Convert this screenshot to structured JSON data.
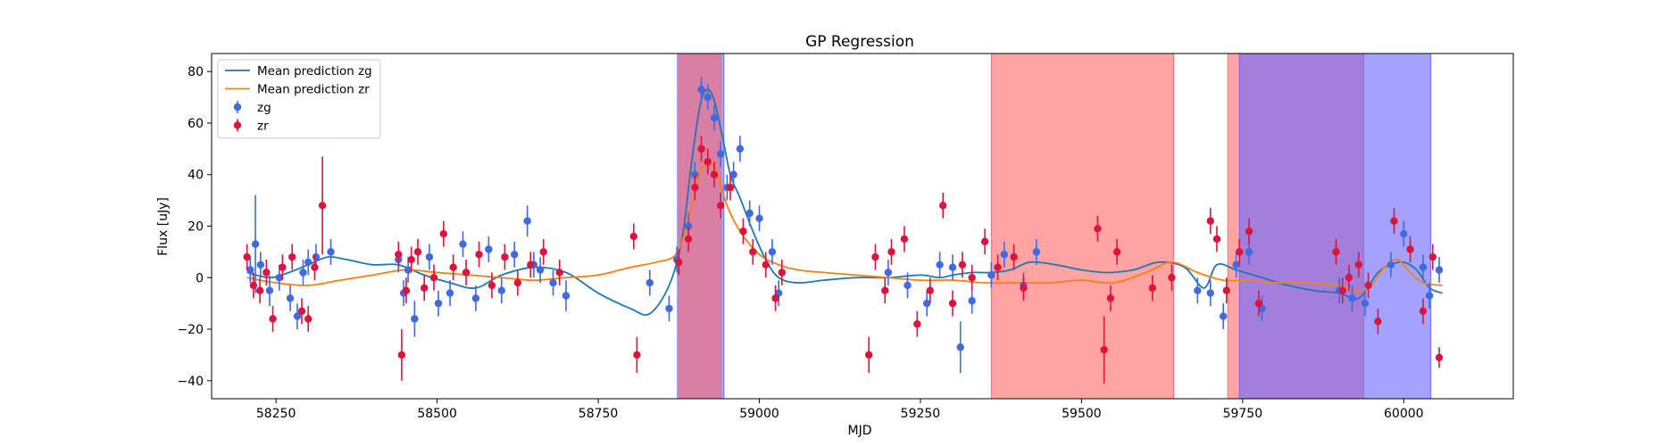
{
  "chart_data": {
    "type": "scatter",
    "title": "GP Regression",
    "xlabel": "MJD",
    "ylabel": "Flux [uJy]",
    "xlim": [
      58150,
      60170
    ],
    "ylim": [
      -47,
      87
    ],
    "xticks": [
      58250,
      58500,
      58750,
      59000,
      59250,
      59500,
      59750,
      60000
    ],
    "yticks": [
      -40,
      -20,
      0,
      20,
      40,
      60,
      80
    ],
    "grid": false,
    "legend_placement": "upper-left",
    "colors": {
      "mean_zg": "#1f77b4",
      "mean_zr": "#ff7f0e",
      "points_zg": "#4169e1",
      "points_zr": "#dc143c",
      "span_red": "#ff6666",
      "span_blue": "#6666ff"
    },
    "shaded_regions": [
      {
        "band": "zg",
        "x": [
          58873,
          58945
        ],
        "color": "blue"
      },
      {
        "band": "zr",
        "x": [
          58876,
          58940
        ],
        "color": "red"
      },
      {
        "band": "zr",
        "x": [
          59360,
          59643
        ],
        "color": "red"
      },
      {
        "band": "zr",
        "x": [
          59727,
          59938
        ],
        "color": "red"
      },
      {
        "band": "zg",
        "x": [
          59745,
          60042
        ],
        "color": "blue"
      }
    ],
    "series": [
      {
        "name": "Mean prediction zg",
        "kind": "line",
        "x": [
          58205,
          58240,
          58270,
          58300,
          58330,
          58360,
          58400,
          58440,
          58480,
          58520,
          58560,
          58600,
          58650,
          58700,
          58750,
          58800,
          58830,
          58860,
          58880,
          58895,
          58910,
          58925,
          58940,
          58955,
          58970,
          58990,
          59010,
          59030,
          59060,
          59100,
          59150,
          59200,
          59250,
          59280,
          59300,
          59330,
          59360,
          59390,
          59420,
          59460,
          59500,
          59540,
          59580,
          59620,
          59660,
          59690,
          59710,
          59740,
          59780,
          59820,
          59860,
          59900,
          59930,
          59960,
          59980,
          60000,
          60020,
          60040,
          60060
        ],
        "y": [
          2,
          0,
          2,
          5,
          8,
          7,
          5,
          5,
          1,
          -2,
          -4,
          1,
          4,
          2,
          -6,
          -12,
          -14,
          -3,
          15,
          45,
          69,
          72,
          58,
          40,
          31,
          18,
          7,
          0,
          -2,
          -1,
          0,
          0,
          1,
          0,
          1,
          2,
          2,
          3,
          6,
          5,
          3,
          2,
          3,
          6,
          4,
          -4,
          5,
          3,
          0,
          -3,
          -5,
          -6,
          -8,
          2,
          5,
          6,
          3,
          -4,
          -6
        ]
      },
      {
        "name": "Mean prediction zr",
        "kind": "line",
        "x": [
          58205,
          58250,
          58300,
          58350,
          58400,
          58450,
          58500,
          58550,
          58600,
          58650,
          58700,
          58750,
          58800,
          58840,
          58870,
          58890,
          58905,
          58920,
          58935,
          58950,
          58970,
          59000,
          59030,
          59060,
          59100,
          59150,
          59200,
          59250,
          59300,
          59350,
          59400,
          59450,
          59500,
          59550,
          59600,
          59640,
          59680,
          59720,
          59760,
          59800,
          59850,
          59900,
          59940,
          59970,
          59990,
          60010,
          60030,
          60060
        ],
        "y": [
          0,
          -2,
          -3,
          -1,
          1,
          3,
          2,
          1,
          0,
          -1,
          0,
          1,
          4,
          6,
          9,
          22,
          38,
          45,
          40,
          28,
          18,
          9,
          5,
          3,
          2,
          1,
          0,
          -1,
          -1,
          -2,
          -2,
          -2,
          -1,
          -2,
          2,
          6,
          2,
          -1,
          -1,
          -2,
          -2,
          -3,
          -5,
          4,
          7,
          2,
          -2,
          -3
        ]
      },
      {
        "name": "zg",
        "kind": "errorbar",
        "x": [
          58210,
          58218,
          58226,
          58240,
          58255,
          58272,
          58283,
          58292,
          58300,
          58312,
          58335,
          58440,
          58448,
          58455,
          58465,
          58488,
          58502,
          58520,
          58540,
          58560,
          58580,
          58600,
          58620,
          58640,
          58650,
          58660,
          58680,
          58700,
          58830,
          58860,
          58872,
          58890,
          58900,
          58910,
          58920,
          58930,
          58940,
          58950,
          58960,
          58970,
          58985,
          59000,
          59020,
          59030,
          59200,
          59230,
          59260,
          59280,
          59300,
          59312,
          59330,
          59360,
          59380,
          59410,
          59430,
          59680,
          59700,
          59720,
          59740,
          59760,
          59780,
          59900,
          59920,
          59940,
          59980,
          60000,
          60030,
          60040,
          60055
        ],
        "y": [
          3,
          13,
          5,
          -5,
          0,
          -8,
          -15,
          2,
          6,
          8,
          10,
          7,
          -6,
          3,
          -16,
          8,
          -10,
          -6,
          13,
          -8,
          11,
          -5,
          9,
          22,
          5,
          3,
          -2,
          -7,
          -2,
          -12,
          7,
          20,
          40,
          73,
          70,
          62,
          48,
          35,
          40,
          50,
          25,
          23,
          10,
          -6,
          2,
          -3,
          -10,
          5,
          4,
          -27,
          -9,
          1,
          9,
          -3,
          10,
          -5,
          -6,
          -15,
          5,
          10,
          -12,
          -5,
          -8,
          -10,
          5,
          17,
          4,
          -7,
          3
        ],
        "err": [
          5,
          19,
          5,
          6,
          5,
          5,
          5,
          5,
          5,
          5,
          5,
          5,
          5,
          5,
          7,
          5,
          5,
          5,
          5,
          5,
          5,
          5,
          5,
          6,
          5,
          5,
          5,
          6,
          5,
          5,
          5,
          5,
          5,
          5,
          5,
          5,
          5,
          5,
          5,
          5,
          5,
          5,
          5,
          5,
          5,
          5,
          5,
          5,
          5,
          10,
          5,
          5,
          5,
          5,
          5,
          5,
          5,
          5,
          5,
          5,
          5,
          5,
          5,
          5,
          5,
          5,
          5,
          5,
          5
        ]
      },
      {
        "name": "zr",
        "kind": "errorbar",
        "x": [
          58205,
          58215,
          58225,
          58235,
          58245,
          58260,
          58275,
          58290,
          58300,
          58310,
          58322,
          58440,
          58445,
          58452,
          58460,
          58470,
          58480,
          58495,
          58510,
          58525,
          58545,
          58565,
          58585,
          58605,
          58625,
          58645,
          58665,
          58690,
          58805,
          58810,
          58875,
          58890,
          58900,
          58910,
          58920,
          58930,
          58940,
          58955,
          58975,
          58990,
          59010,
          59025,
          59035,
          59170,
          59180,
          59195,
          59205,
          59225,
          59245,
          59265,
          59285,
          59300,
          59315,
          59330,
          59350,
          59370,
          59395,
          59410,
          59525,
          59535,
          59545,
          59555,
          59610,
          59640,
          59700,
          59710,
          59725,
          59745,
          59760,
          59775,
          59895,
          59905,
          59915,
          59930,
          59945,
          59960,
          59985,
          60010,
          60030,
          60045,
          60055
        ],
        "y": [
          8,
          -3,
          -5,
          2,
          -16,
          4,
          8,
          -13,
          -16,
          4,
          28,
          9,
          -30,
          -5,
          7,
          10,
          -4,
          0,
          17,
          4,
          2,
          9,
          -3,
          8,
          -2,
          5,
          10,
          2,
          16,
          -30,
          6,
          15,
          35,
          50,
          45,
          40,
          28,
          35,
          18,
          10,
          5,
          -8,
          2,
          -30,
          8,
          -5,
          10,
          15,
          -18,
          -5,
          28,
          -10,
          5,
          0,
          14,
          4,
          8,
          -4,
          19,
          -28,
          -8,
          10,
          -4,
          0,
          22,
          15,
          -5,
          10,
          18,
          -10,
          10,
          -5,
          0,
          5,
          -3,
          -17,
          22,
          11,
          -13,
          8,
          -31
        ],
        "err": [
          5,
          5,
          5,
          5,
          5,
          5,
          5,
          5,
          5,
          5,
          19,
          5,
          10,
          5,
          5,
          5,
          5,
          5,
          5,
          5,
          5,
          5,
          5,
          5,
          5,
          5,
          5,
          5,
          5,
          7,
          5,
          5,
          5,
          5,
          5,
          5,
          5,
          5,
          5,
          5,
          5,
          5,
          5,
          7,
          5,
          5,
          5,
          5,
          5,
          5,
          5,
          5,
          5,
          5,
          5,
          5,
          5,
          5,
          5,
          13,
          5,
          5,
          5,
          5,
          5,
          5,
          5,
          5,
          5,
          5,
          5,
          5,
          5,
          5,
          5,
          5,
          5,
          5,
          5,
          5,
          4
        ]
      }
    ]
  }
}
